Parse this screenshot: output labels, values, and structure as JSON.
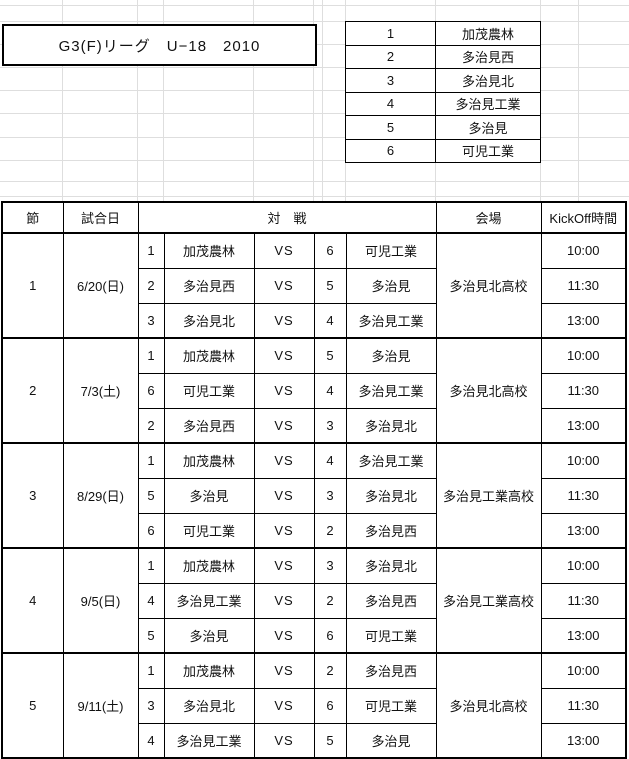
{
  "title": "G3(F)リーグ　U−18　2010",
  "team_list": [
    {
      "no": "1",
      "name": "加茂農林"
    },
    {
      "no": "2",
      "name": "多治見西"
    },
    {
      "no": "3",
      "name": "多治見北"
    },
    {
      "no": "4",
      "name": "多治見工業"
    },
    {
      "no": "5",
      "name": "多治見"
    },
    {
      "no": "6",
      "name": "可児工業"
    }
  ],
  "schedule": {
    "headers": {
      "round": "節",
      "date": "試合日",
      "match": "対　戦",
      "venue": "会場",
      "kickoff": "KickOff時間"
    },
    "vs_label": "VS",
    "rounds": [
      {
        "round": "1",
        "date": "6/20(日)",
        "venue": "多治見北高校",
        "matches": [
          {
            "home_no": "1",
            "home": "加茂農林",
            "away_no": "6",
            "away": "可児工業",
            "time": "10:00"
          },
          {
            "home_no": "2",
            "home": "多治見西",
            "away_no": "5",
            "away": "多治見",
            "time": "11:30"
          },
          {
            "home_no": "3",
            "home": "多治見北",
            "away_no": "4",
            "away": "多治見工業",
            "time": "13:00"
          }
        ]
      },
      {
        "round": "2",
        "date": "7/3(土)",
        "venue": "多治見北高校",
        "matches": [
          {
            "home_no": "1",
            "home": "加茂農林",
            "away_no": "5",
            "away": "多治見",
            "time": "10:00"
          },
          {
            "home_no": "6",
            "home": "可児工業",
            "away_no": "4",
            "away": "多治見工業",
            "time": "11:30"
          },
          {
            "home_no": "2",
            "home": "多治見西",
            "away_no": "3",
            "away": "多治見北",
            "time": "13:00"
          }
        ]
      },
      {
        "round": "3",
        "date": "8/29(日)",
        "venue": "多治見工業高校",
        "matches": [
          {
            "home_no": "1",
            "home": "加茂農林",
            "away_no": "4",
            "away": "多治見工業",
            "time": "10:00"
          },
          {
            "home_no": "5",
            "home": "多治見",
            "away_no": "3",
            "away": "多治見北",
            "time": "11:30"
          },
          {
            "home_no": "6",
            "home": "可児工業",
            "away_no": "2",
            "away": "多治見西",
            "time": "13:00"
          }
        ]
      },
      {
        "round": "4",
        "date": "9/5(日)",
        "venue": "多治見工業高校",
        "matches": [
          {
            "home_no": "1",
            "home": "加茂農林",
            "away_no": "3",
            "away": "多治見北",
            "time": "10:00"
          },
          {
            "home_no": "4",
            "home": "多治見工業",
            "away_no": "2",
            "away": "多治見西",
            "time": "11:30"
          },
          {
            "home_no": "5",
            "home": "多治見",
            "away_no": "6",
            "away": "可児工業",
            "time": "13:00"
          }
        ]
      },
      {
        "round": "5",
        "date": "9/11(土)",
        "venue": "多治見北高校",
        "matches": [
          {
            "home_no": "1",
            "home": "加茂農林",
            "away_no": "2",
            "away": "多治見西",
            "time": "10:00"
          },
          {
            "home_no": "3",
            "home": "多治見北",
            "away_no": "6",
            "away": "可児工業",
            "time": "11:30"
          },
          {
            "home_no": "4",
            "home": "多治見工業",
            "away_no": "5",
            "away": "多治見",
            "time": "13:00"
          }
        ]
      }
    ]
  }
}
